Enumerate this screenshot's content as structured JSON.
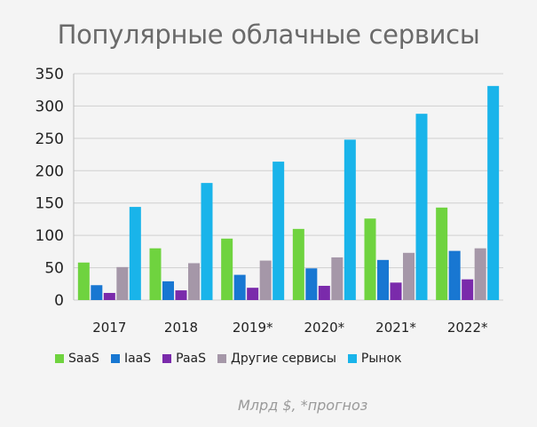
{
  "chart_data": {
    "type": "bar",
    "title": "Популярные облачные сервисы",
    "categories": [
      "2017",
      "2018",
      "2019*",
      "2020*",
      "2021*",
      "2022*"
    ],
    "series": [
      {
        "name": "SaaS",
        "color": "#6fd33f",
        "values": [
          58,
          80,
          95,
          110,
          126,
          143
        ]
      },
      {
        "name": "IaaS",
        "color": "#1877d2",
        "values": [
          23,
          29,
          39,
          49,
          62,
          76
        ]
      },
      {
        "name": "PaaS",
        "color": "#7a2aab",
        "values": [
          11,
          15,
          19,
          22,
          27,
          32
        ]
      },
      {
        "name": "Другие сервисы",
        "color": "#a597a8",
        "values": [
          51,
          57,
          61,
          66,
          73,
          80
        ]
      },
      {
        "name": "Рынок",
        "color": "#19b4ea",
        "values": [
          144,
          181,
          214,
          248,
          288,
          331
        ]
      }
    ],
    "yticks": [
      0,
      50,
      100,
      150,
      200,
      250,
      300,
      350
    ],
    "ylim": [
      0,
      350
    ],
    "legend_position": "bottom",
    "note": "Млрд $, *прогноз"
  }
}
